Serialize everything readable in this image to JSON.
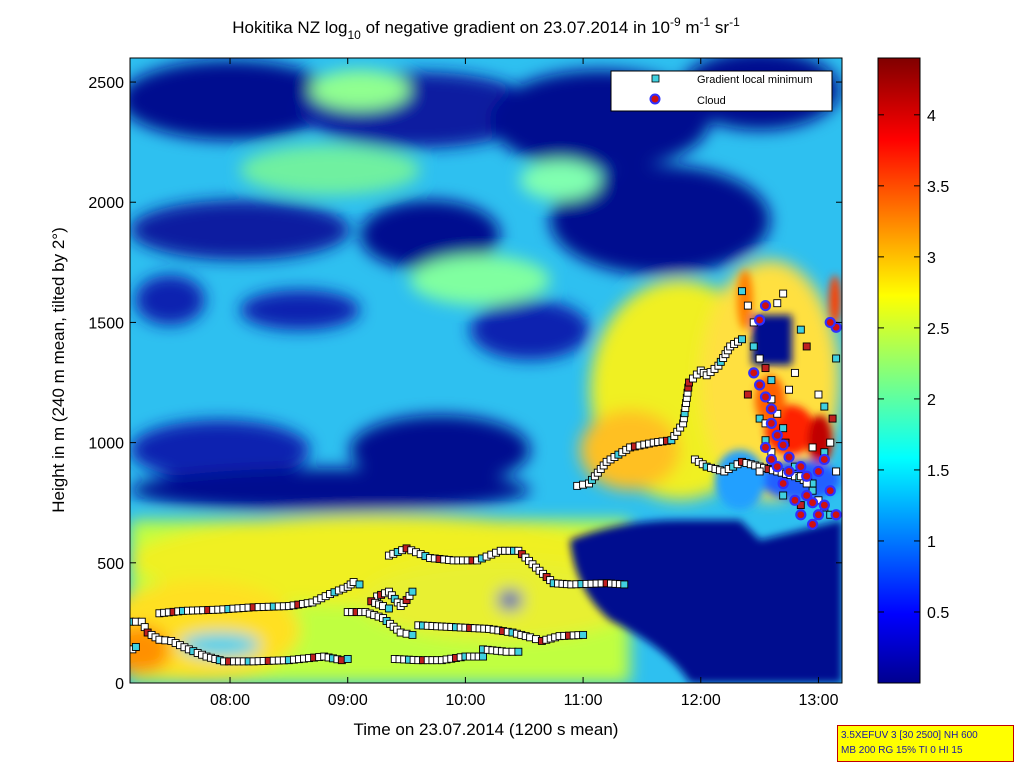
{
  "chart_data": {
    "type": "heatmap",
    "title": {
      "prefix": "Hokitika NZ log",
      "sub": "10",
      "middle": " of negative gradient on 23.07.2014 in 10",
      "sup1": "-9",
      "unit1": " m",
      "sup2": "-1",
      "unit2": " sr",
      "sup3": "-1"
    },
    "xlabel": "Time on 23.07.2014 (1200 s mean)",
    "ylabel": "Height in m (240 m mean, tilted by 2°)",
    "x_unit": "decimal hours",
    "xlim": [
      7.15,
      13.2
    ],
    "ylim": [
      0,
      2600
    ],
    "x_ticks": [
      {
        "value": 8,
        "label": "08:00"
      },
      {
        "value": 9,
        "label": "09:00"
      },
      {
        "value": 10,
        "label": "10:00"
      },
      {
        "value": 11,
        "label": "11:00"
      },
      {
        "value": 12,
        "label": "12:00"
      },
      {
        "value": 13,
        "label": "13:00"
      }
    ],
    "y_ticks": [
      {
        "value": 0,
        "label": "0"
      },
      {
        "value": 500,
        "label": "500"
      },
      {
        "value": 1000,
        "label": "1000"
      },
      {
        "value": 1500,
        "label": "1500"
      },
      {
        "value": 2000,
        "label": "2000"
      },
      {
        "value": 2500,
        "label": "2500"
      }
    ],
    "colorbar": {
      "colormap": "jet",
      "range": [
        0,
        4.4
      ],
      "ticks": [
        {
          "value": 0.5,
          "label": "0.5"
        },
        {
          "value": 1,
          "label": "1"
        },
        {
          "value": 1.5,
          "label": "1.5"
        },
        {
          "value": 2,
          "label": "2"
        },
        {
          "value": 2.5,
          "label": "2.5"
        },
        {
          "value": 3,
          "label": "3"
        },
        {
          "value": 3.5,
          "label": "3.5"
        },
        {
          "value": 4,
          "label": "4"
        }
      ]
    },
    "legend": {
      "placement": "top-right",
      "entries": [
        {
          "label": "Gradient local minimum",
          "marker": "square",
          "color": "#40d0e0"
        },
        {
          "label": "Cloud",
          "marker": "circle",
          "color": "#d01010",
          "edge": "#3030ff"
        }
      ]
    },
    "series": [
      {
        "kind": "gradient-local-minimum",
        "segments": [
          [
            [
              7.15,
              255
            ],
            [
              7.25,
              255
            ],
            [
              7.3,
              210
            ],
            [
              7.4,
              180
            ],
            [
              7.5,
              175
            ],
            [
              7.65,
              140
            ],
            [
              7.8,
              110
            ],
            [
              7.95,
              90
            ],
            [
              8.2,
              90
            ],
            [
              8.5,
              95
            ],
            [
              8.8,
              110
            ],
            [
              8.95,
              95
            ],
            [
              9.0,
              100
            ]
          ],
          [
            [
              7.17,
              140
            ],
            [
              7.2,
              150
            ]
          ],
          [
            [
              7.4,
              290
            ],
            [
              7.6,
              300
            ],
            [
              7.9,
              305
            ],
            [
              8.2,
              315
            ],
            [
              8.5,
              320
            ],
            [
              8.7,
              335
            ],
            [
              8.85,
              370
            ],
            [
              9.0,
              400
            ],
            [
              9.05,
              420
            ],
            [
              9.1,
              410
            ]
          ],
          [
            [
              9.0,
              295
            ],
            [
              9.15,
              295
            ],
            [
              9.3,
              270
            ],
            [
              9.45,
              210
            ],
            [
              9.55,
              200
            ]
          ],
          [
            [
              9.25,
              360
            ],
            [
              9.35,
              380
            ],
            [
              9.4,
              350
            ],
            [
              9.45,
              320
            ],
            [
              9.5,
              345
            ],
            [
              9.55,
              380
            ]
          ],
          [
            [
              9.2,
              340
            ],
            [
              9.3,
              320
            ],
            [
              9.35,
              310
            ]
          ],
          [
            [
              9.4,
              100
            ],
            [
              9.6,
              95
            ],
            [
              9.8,
              95
            ],
            [
              10.0,
              110
            ],
            [
              10.15,
              110
            ]
          ],
          [
            [
              9.35,
              530
            ],
            [
              9.5,
              560
            ],
            [
              9.7,
              520
            ],
            [
              9.9,
              510
            ],
            [
              10.1,
              510
            ],
            [
              10.3,
              550
            ],
            [
              10.45,
              550
            ],
            [
              10.6,
              480
            ],
            [
              10.75,
              415
            ],
            [
              10.9,
              410
            ],
            [
              11.2,
              415
            ],
            [
              11.35,
              410
            ]
          ],
          [
            [
              9.6,
              240
            ],
            [
              9.8,
              235
            ],
            [
              10.0,
              230
            ],
            [
              10.2,
              225
            ],
            [
              10.4,
              210
            ],
            [
              10.55,
              190
            ],
            [
              10.65,
              175
            ],
            [
              10.8,
              195
            ],
            [
              11.0,
              200
            ]
          ],
          [
            [
              10.15,
              140
            ],
            [
              10.35,
              130
            ],
            [
              10.45,
              130
            ]
          ],
          [
            [
              10.95,
              820
            ],
            [
              11.05,
              830
            ],
            [
              11.2,
              920
            ],
            [
              11.4,
              980
            ],
            [
              11.6,
              1000
            ],
            [
              11.75,
              1010
            ],
            [
              11.85,
              1080
            ],
            [
              11.9,
              1250
            ],
            [
              12.0,
              1300
            ],
            [
              12.05,
              1280
            ],
            [
              12.15,
              1320
            ],
            [
              12.25,
              1400
            ],
            [
              12.35,
              1430
            ]
          ],
          [
            [
              11.95,
              930
            ],
            [
              12.05,
              900
            ],
            [
              12.2,
              880
            ],
            [
              12.35,
              920
            ],
            [
              12.5,
              900
            ],
            [
              12.65,
              880
            ],
            [
              12.8,
              860
            ],
            [
              12.95,
              830
            ]
          ]
        ],
        "scatter": [
          [
            12.35,
            1630
          ],
          [
            12.4,
            1570
          ],
          [
            12.45,
            1500
          ],
          [
            12.45,
            1400
          ],
          [
            12.5,
            1350
          ],
          [
            12.55,
            1310
          ],
          [
            12.6,
            1260
          ],
          [
            12.6,
            1180
          ],
          [
            12.65,
            1120
          ],
          [
            12.7,
            1060
          ],
          [
            12.72,
            1000
          ],
          [
            12.75,
            940
          ],
          [
            12.8,
            900
          ],
          [
            12.85,
            860
          ],
          [
            12.9,
            830
          ],
          [
            12.95,
            800
          ],
          [
            13.0,
            760
          ],
          [
            13.05,
            730
          ],
          [
            13.1,
            700
          ],
          [
            13.15,
            880
          ],
          [
            13.12,
            1100
          ],
          [
            13.15,
            1350
          ],
          [
            12.65,
            1580
          ],
          [
            12.7,
            1620
          ],
          [
            12.85,
            1470
          ],
          [
            12.9,
            1400
          ],
          [
            13.0,
            1200
          ],
          [
            13.05,
            1150
          ],
          [
            12.75,
            1220
          ],
          [
            12.8,
            1290
          ],
          [
            12.55,
            1010
          ],
          [
            12.6,
            960
          ],
          [
            12.95,
            980
          ],
          [
            13.05,
            960
          ],
          [
            13.1,
            1000
          ],
          [
            12.4,
            1200
          ],
          [
            12.5,
            1100
          ],
          [
            12.55,
            1080
          ],
          [
            12.5,
            880
          ],
          [
            12.7,
            780
          ],
          [
            12.85,
            740
          ]
        ]
      },
      {
        "kind": "cloud",
        "points": [
          [
            12.5,
            1510
          ],
          [
            12.55,
            1570
          ],
          [
            12.45,
            1290
          ],
          [
            12.5,
            1240
          ],
          [
            12.55,
            1190
          ],
          [
            12.6,
            1140
          ],
          [
            12.6,
            1080
          ],
          [
            12.65,
            1030
          ],
          [
            12.7,
            990
          ],
          [
            12.75,
            940
          ],
          [
            12.85,
            900
          ],
          [
            12.9,
            860
          ],
          [
            12.7,
            830
          ],
          [
            12.75,
            880
          ],
          [
            12.8,
            760
          ],
          [
            12.85,
            700
          ],
          [
            12.95,
            660
          ],
          [
            13.0,
            700
          ],
          [
            13.05,
            740
          ],
          [
            13.1,
            800
          ],
          [
            13.15,
            700
          ],
          [
            13.15,
            1480
          ],
          [
            13.1,
            1500
          ],
          [
            13.05,
            930
          ],
          [
            13.0,
            880
          ],
          [
            12.65,
            900
          ],
          [
            12.6,
            930
          ],
          [
            12.55,
            980
          ],
          [
            12.95,
            750
          ],
          [
            12.9,
            780
          ]
        ]
      }
    ]
  },
  "info_box": {
    "line1": "3.5XEFUV 3 [30 2500] NH 600",
    "line2": "MB 200 RG 15% TI 0 HI 15"
  }
}
